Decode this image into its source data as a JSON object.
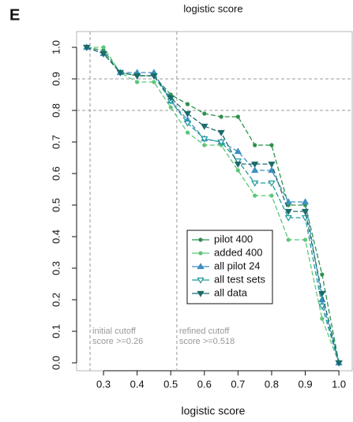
{
  "panel_label": "E",
  "chart_data": {
    "type": "line",
    "title": "logistic score",
    "x_label": "logistic score",
    "x": [
      0.25,
      0.3,
      0.35,
      0.4,
      0.45,
      0.5,
      0.55,
      0.6,
      0.65,
      0.7,
      0.75,
      0.8,
      0.85,
      0.9,
      0.95,
      1.0
    ],
    "series": [
      {
        "name": "pilot 400",
        "color": "#2f8f4e",
        "marker": "circle",
        "values": [
          1.0,
          0.99,
          0.92,
          0.91,
          0.91,
          0.85,
          0.82,
          0.79,
          0.78,
          0.78,
          0.69,
          0.69,
          0.5,
          0.5,
          0.28,
          0.0
        ]
      },
      {
        "name": "added 400",
        "color": "#5cc77a",
        "marker": "circle",
        "values": [
          1.0,
          1.0,
          0.92,
          0.89,
          0.89,
          0.81,
          0.73,
          0.69,
          0.69,
          0.61,
          0.53,
          0.53,
          0.39,
          0.39,
          0.14,
          0.0
        ]
      },
      {
        "name": "all pilot 24",
        "color": "#3d8fc0",
        "marker": "triangle-up",
        "values": [
          1.0,
          0.98,
          0.92,
          0.92,
          0.92,
          0.83,
          0.77,
          0.71,
          0.7,
          0.67,
          0.61,
          0.61,
          0.51,
          0.51,
          0.2,
          0.0
        ]
      },
      {
        "name": "all test sets",
        "color": "#1f9a9a",
        "marker": "triangle-down-open",
        "values": [
          1.0,
          0.98,
          0.92,
          0.91,
          0.91,
          0.83,
          0.76,
          0.71,
          0.7,
          0.64,
          0.57,
          0.57,
          0.46,
          0.46,
          0.18,
          0.0
        ]
      },
      {
        "name": "all data",
        "color": "#1d6b6b",
        "marker": "triangle-down",
        "values": [
          1.0,
          0.98,
          0.92,
          0.91,
          0.91,
          0.84,
          0.79,
          0.75,
          0.73,
          0.63,
          0.63,
          0.63,
          0.48,
          0.48,
          0.22,
          0.0
        ]
      }
    ],
    "xlim": [
      0.22,
      1.042
    ],
    "ylim": [
      -0.025,
      1.05
    ],
    "xticks": [
      0.3,
      0.4,
      0.5,
      0.6,
      0.7,
      0.8,
      0.9,
      {
        "value": 1.0,
        "label": "1.0"
      }
    ],
    "yticks": [
      {
        "value": 0.0,
        "label": "0.0"
      },
      0.1,
      0.2,
      0.3,
      0.4,
      0.5,
      0.6,
      0.7,
      0.8,
      0.9,
      {
        "value": 1.0,
        "label": "1.0"
      }
    ],
    "reference_lines": {
      "x": [
        0.26,
        0.518
      ],
      "y": [
        0.8,
        0.9
      ]
    },
    "annotations": [
      [
        "initial cutoff",
        "score >=0.26"
      ],
      [
        "refined cutoff",
        "score >=0.518"
      ]
    ],
    "legend": "center"
  }
}
